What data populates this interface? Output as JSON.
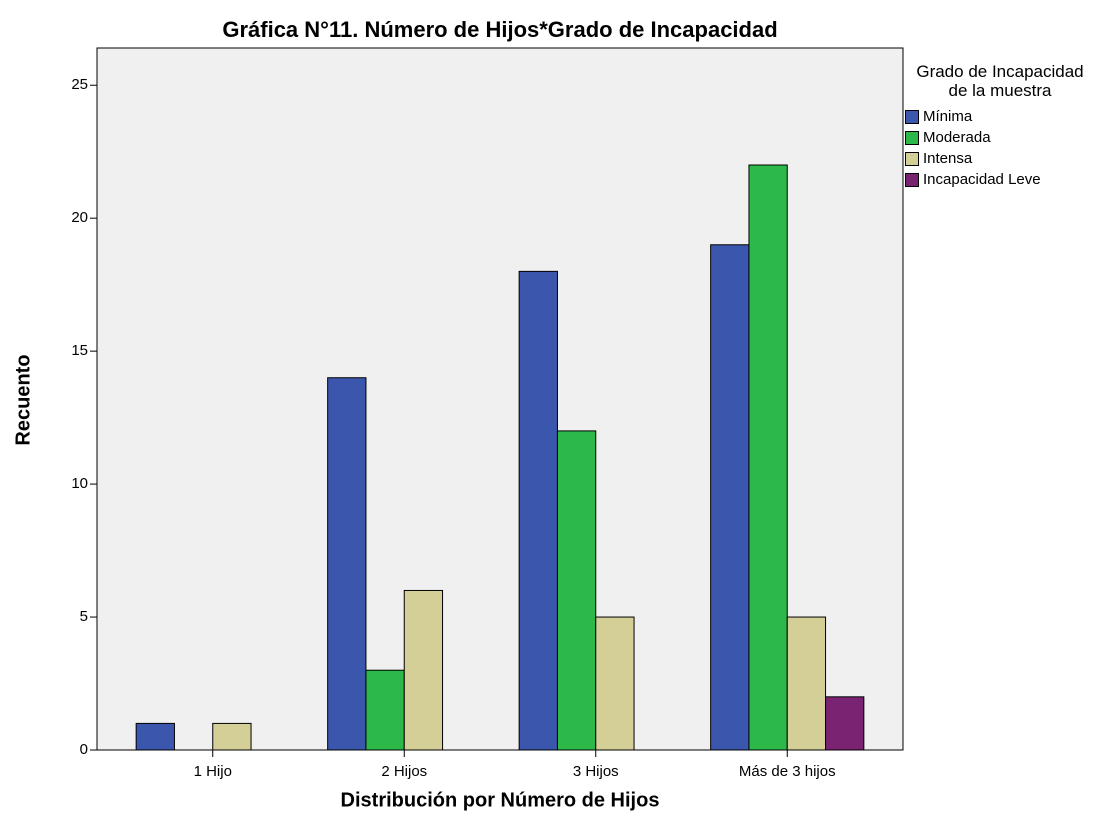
{
  "chart_data": {
    "type": "bar",
    "title": "Gráfica N°11. Número de Hijos*Grado de Incapacidad",
    "x_label": "Distribución por Número de Hijos",
    "y_label": "Recuento",
    "legend_title": "Grado de Incapacidad de la muestra",
    "legend_position": "right",
    "categories": [
      "1 Hijo",
      "2 Hijos",
      "3 Hijos",
      "Más de 3 hijos"
    ],
    "series": [
      {
        "name": "Mínima",
        "color": "#3b56ad",
        "values": [
          1,
          14,
          18,
          19
        ]
      },
      {
        "name": "Moderada",
        "color": "#2db84a",
        "values": [
          null,
          3,
          12,
          22
        ]
      },
      {
        "name": "Intensa",
        "color": "#d4cf96",
        "values": [
          1,
          6,
          5,
          5
        ]
      },
      {
        "name": "Incapacidad Leve",
        "color": "#7a2373",
        "values": [
          null,
          null,
          null,
          2
        ]
      }
    ],
    "ylim": [
      0,
      26.4
    ],
    "yticks": [
      0,
      5,
      10,
      15,
      20,
      25
    ]
  }
}
